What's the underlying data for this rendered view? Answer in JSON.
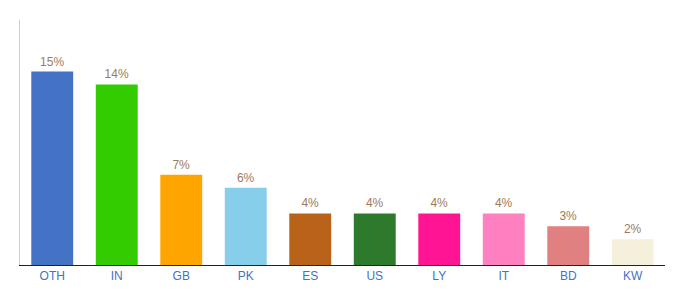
{
  "chart_data": {
    "type": "bar",
    "categories": [
      "OTH",
      "IN",
      "GB",
      "PK",
      "ES",
      "US",
      "LY",
      "IT",
      "BD",
      "KW"
    ],
    "values": [
      15,
      14,
      7,
      6,
      4,
      4,
      4,
      4,
      3,
      2
    ],
    "value_labels": [
      "15%",
      "14%",
      "7%",
      "6%",
      "4%",
      "4%",
      "4%",
      "4%",
      "3%",
      "2%"
    ],
    "data_labels": true,
    "colors": [
      "#4472C4",
      "#33CC00",
      "#FFA500",
      "#87CEEB",
      "#B8621A",
      "#2D7A2D",
      "#FF1493",
      "#FF80C0",
      "#E08080",
      "#F5F0DC"
    ],
    "ylim": [
      0,
      19
    ],
    "grid": false,
    "tick_labels": "x"
  }
}
